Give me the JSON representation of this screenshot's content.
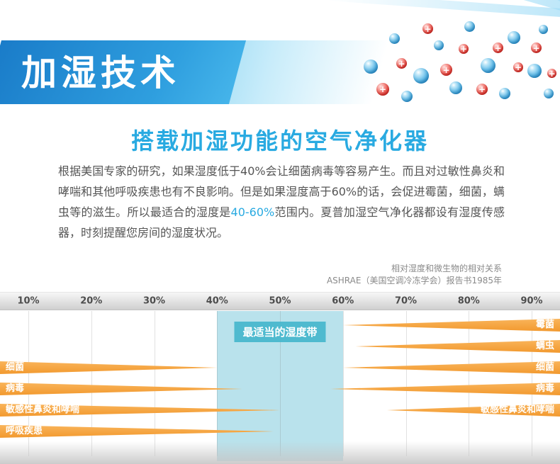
{
  "banner": {
    "title": "加湿技术"
  },
  "heading": "搭载加湿功能的空气净化器",
  "paragraph": {
    "part1": "根据美国专家的研究，如果湿度低于40%会让细菌病毒等容易产生。而且对过敏性鼻炎和哮喘和其他呼吸疾患也有不良影响。但是如果湿度高于60%的话，会促进霉菌，细菌，螨虫等的滋生。所以最适合的湿度是",
    "highlight": "40-60%",
    "part2": "范围内。夏普加湿空气净化器都设有湿度传感器，时刻提醒您房间的湿度状况。"
  },
  "chart_caption": {
    "line1": "相对湿度和微生物的相对关系",
    "line2": "ASHRAE（美国空调冷冻学会）报告书1985年"
  },
  "decor": {
    "germ_plus": "+",
    "droplet_icon": "water-droplet",
    "germ_icon": "red-germ-plus"
  },
  "colors": {
    "accent_blue": "#29aae1",
    "banner_blue": "#1f86cc",
    "band_cyan": "#b9e2ec",
    "band_label_teal": "#45b6cc",
    "wedge_orange": "#f5a13c",
    "text_gray": "#555555"
  },
  "chart_data": {
    "type": "bar",
    "orientation": "horizontal-range-wedges",
    "title": "相对湿度和微生物的相对关系",
    "source": "ASHRAE（美国空调冷冻学会）报告书1985年",
    "x_unit": "%",
    "x_ticks": [
      "10%",
      "20%",
      "30%",
      "40%",
      "50%",
      "60%",
      "70%",
      "80%",
      "90%"
    ],
    "x_range": [
      5,
      95
    ],
    "optimal_band": {
      "from": 40,
      "to": 60,
      "label": "最适当的湿度带"
    },
    "rows": [
      {
        "label": "霉菌",
        "right": {
          "from": 60,
          "to": 95
        }
      },
      {
        "label": "螨虫",
        "right": {
          "from": 62,
          "to": 95
        }
      },
      {
        "label": "细菌",
        "left": {
          "from": 5,
          "to": 40
        },
        "right": {
          "from": 60,
          "to": 95
        }
      },
      {
        "label": "病毒",
        "left": {
          "from": 5,
          "to": 44
        },
        "right": {
          "from": 58,
          "to": 95
        }
      },
      {
        "label": "敏感性鼻炎和哮喘",
        "left": {
          "from": 5,
          "to": 50
        },
        "right": {
          "from": 67,
          "to": 95
        }
      },
      {
        "label": "呼吸疾患",
        "left": {
          "from": 5,
          "to": 49
        }
      }
    ]
  }
}
